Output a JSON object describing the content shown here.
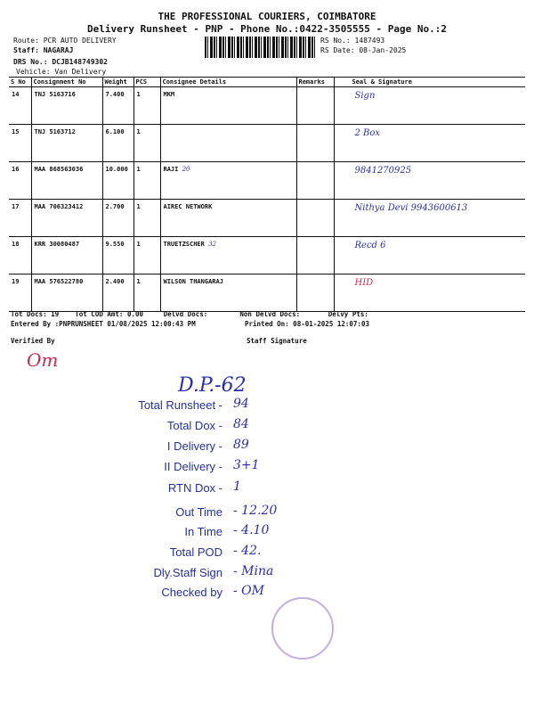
{
  "header": {
    "company": "THE PROFESSIONAL COURIERS, COIMBATORE",
    "subtitle": "Delivery Runsheet - PNP - Phone No.:0422-3505555 - Page No.:2",
    "route": "Route: PCR AUTO DELIVERY",
    "staff": "Staff: NAGARAJ",
    "drs": "DRS No.: DCJB148749302",
    "vehicle": "Vehicle: Van Delivery",
    "rs_no": "RS No.: 1487493",
    "rs_date": "RS Date: 08-Jan-2025"
  },
  "table": {
    "columns": [
      "S No",
      "Consignment No",
      "Weight",
      "PCS",
      "Consignee Details",
      "Remarks",
      "Seal & Signature"
    ],
    "rows": [
      {
        "sno": "14",
        "cons": "TNJ 5163716",
        "weight": "7.400",
        "pcs": "1",
        "consignee": "MKM",
        "note": "",
        "sign": "Sign"
      },
      {
        "sno": "15",
        "cons": "TNJ 5163712",
        "weight": "6.100",
        "pcs": "1",
        "consignee": "",
        "note": "",
        "sign": "2 Box"
      },
      {
        "sno": "16",
        "cons": "MAA 868563036",
        "weight": "10.000",
        "pcs": "1",
        "consignee": "RAJI",
        "note": "20",
        "sign": "9841270925"
      },
      {
        "sno": "17",
        "cons": "MAA 706323412",
        "weight": "2.700",
        "pcs": "1",
        "consignee": "AIREC NETWORK",
        "note": "",
        "sign": "Nithya Devi 9943600613"
      },
      {
        "sno": "18",
        "cons": "KRR 30080487",
        "weight": "9.550",
        "pcs": "1",
        "consignee": "TRUETZSCHER",
        "note": "32",
        "sign": "Recd 6"
      },
      {
        "sno": "19",
        "cons": "MAA 576522780",
        "weight": "2.400",
        "pcs": "1",
        "consignee": "WILSON THANGARAJ",
        "note": "",
        "sign": "HID"
      }
    ]
  },
  "footer": {
    "tot_docs": "Tot Docs:  19",
    "tot_cod": "Tot COD Amt:    0.00",
    "delvd": "Delvd Docs:",
    "non_delvd": "Non Delvd Docs:",
    "delvy_pts": "Delvy Pts:",
    "entered": "Entered By :PNPRUNSHEET 01/08/2025 12:00:43 PM",
    "printed": "Printed On: 08-01-2025 12:07:03",
    "verified": "Verified By",
    "staff_sig": "Staff Signature"
  },
  "summary": {
    "dp": "D.P.-62",
    "items": [
      {
        "label": "Total Runsheet -",
        "value": "94"
      },
      {
        "label": "Total Dox -",
        "value": "84"
      },
      {
        "label": "I Delivery -",
        "value": "89"
      },
      {
        "label": "II Delivery -",
        "value": "3+1"
      },
      {
        "label": "RTN Dox -",
        "value": "1"
      },
      {
        "label": "Out Time",
        "value": "- 12.20"
      },
      {
        "label": "In Time",
        "value": "- 4.10"
      },
      {
        "label": "Total POD",
        "value": "- 42."
      },
      {
        "label": "Dly.Staff Sign",
        "value": "- Mina"
      },
      {
        "label": "Checked by",
        "value": "- OM"
      }
    ]
  }
}
